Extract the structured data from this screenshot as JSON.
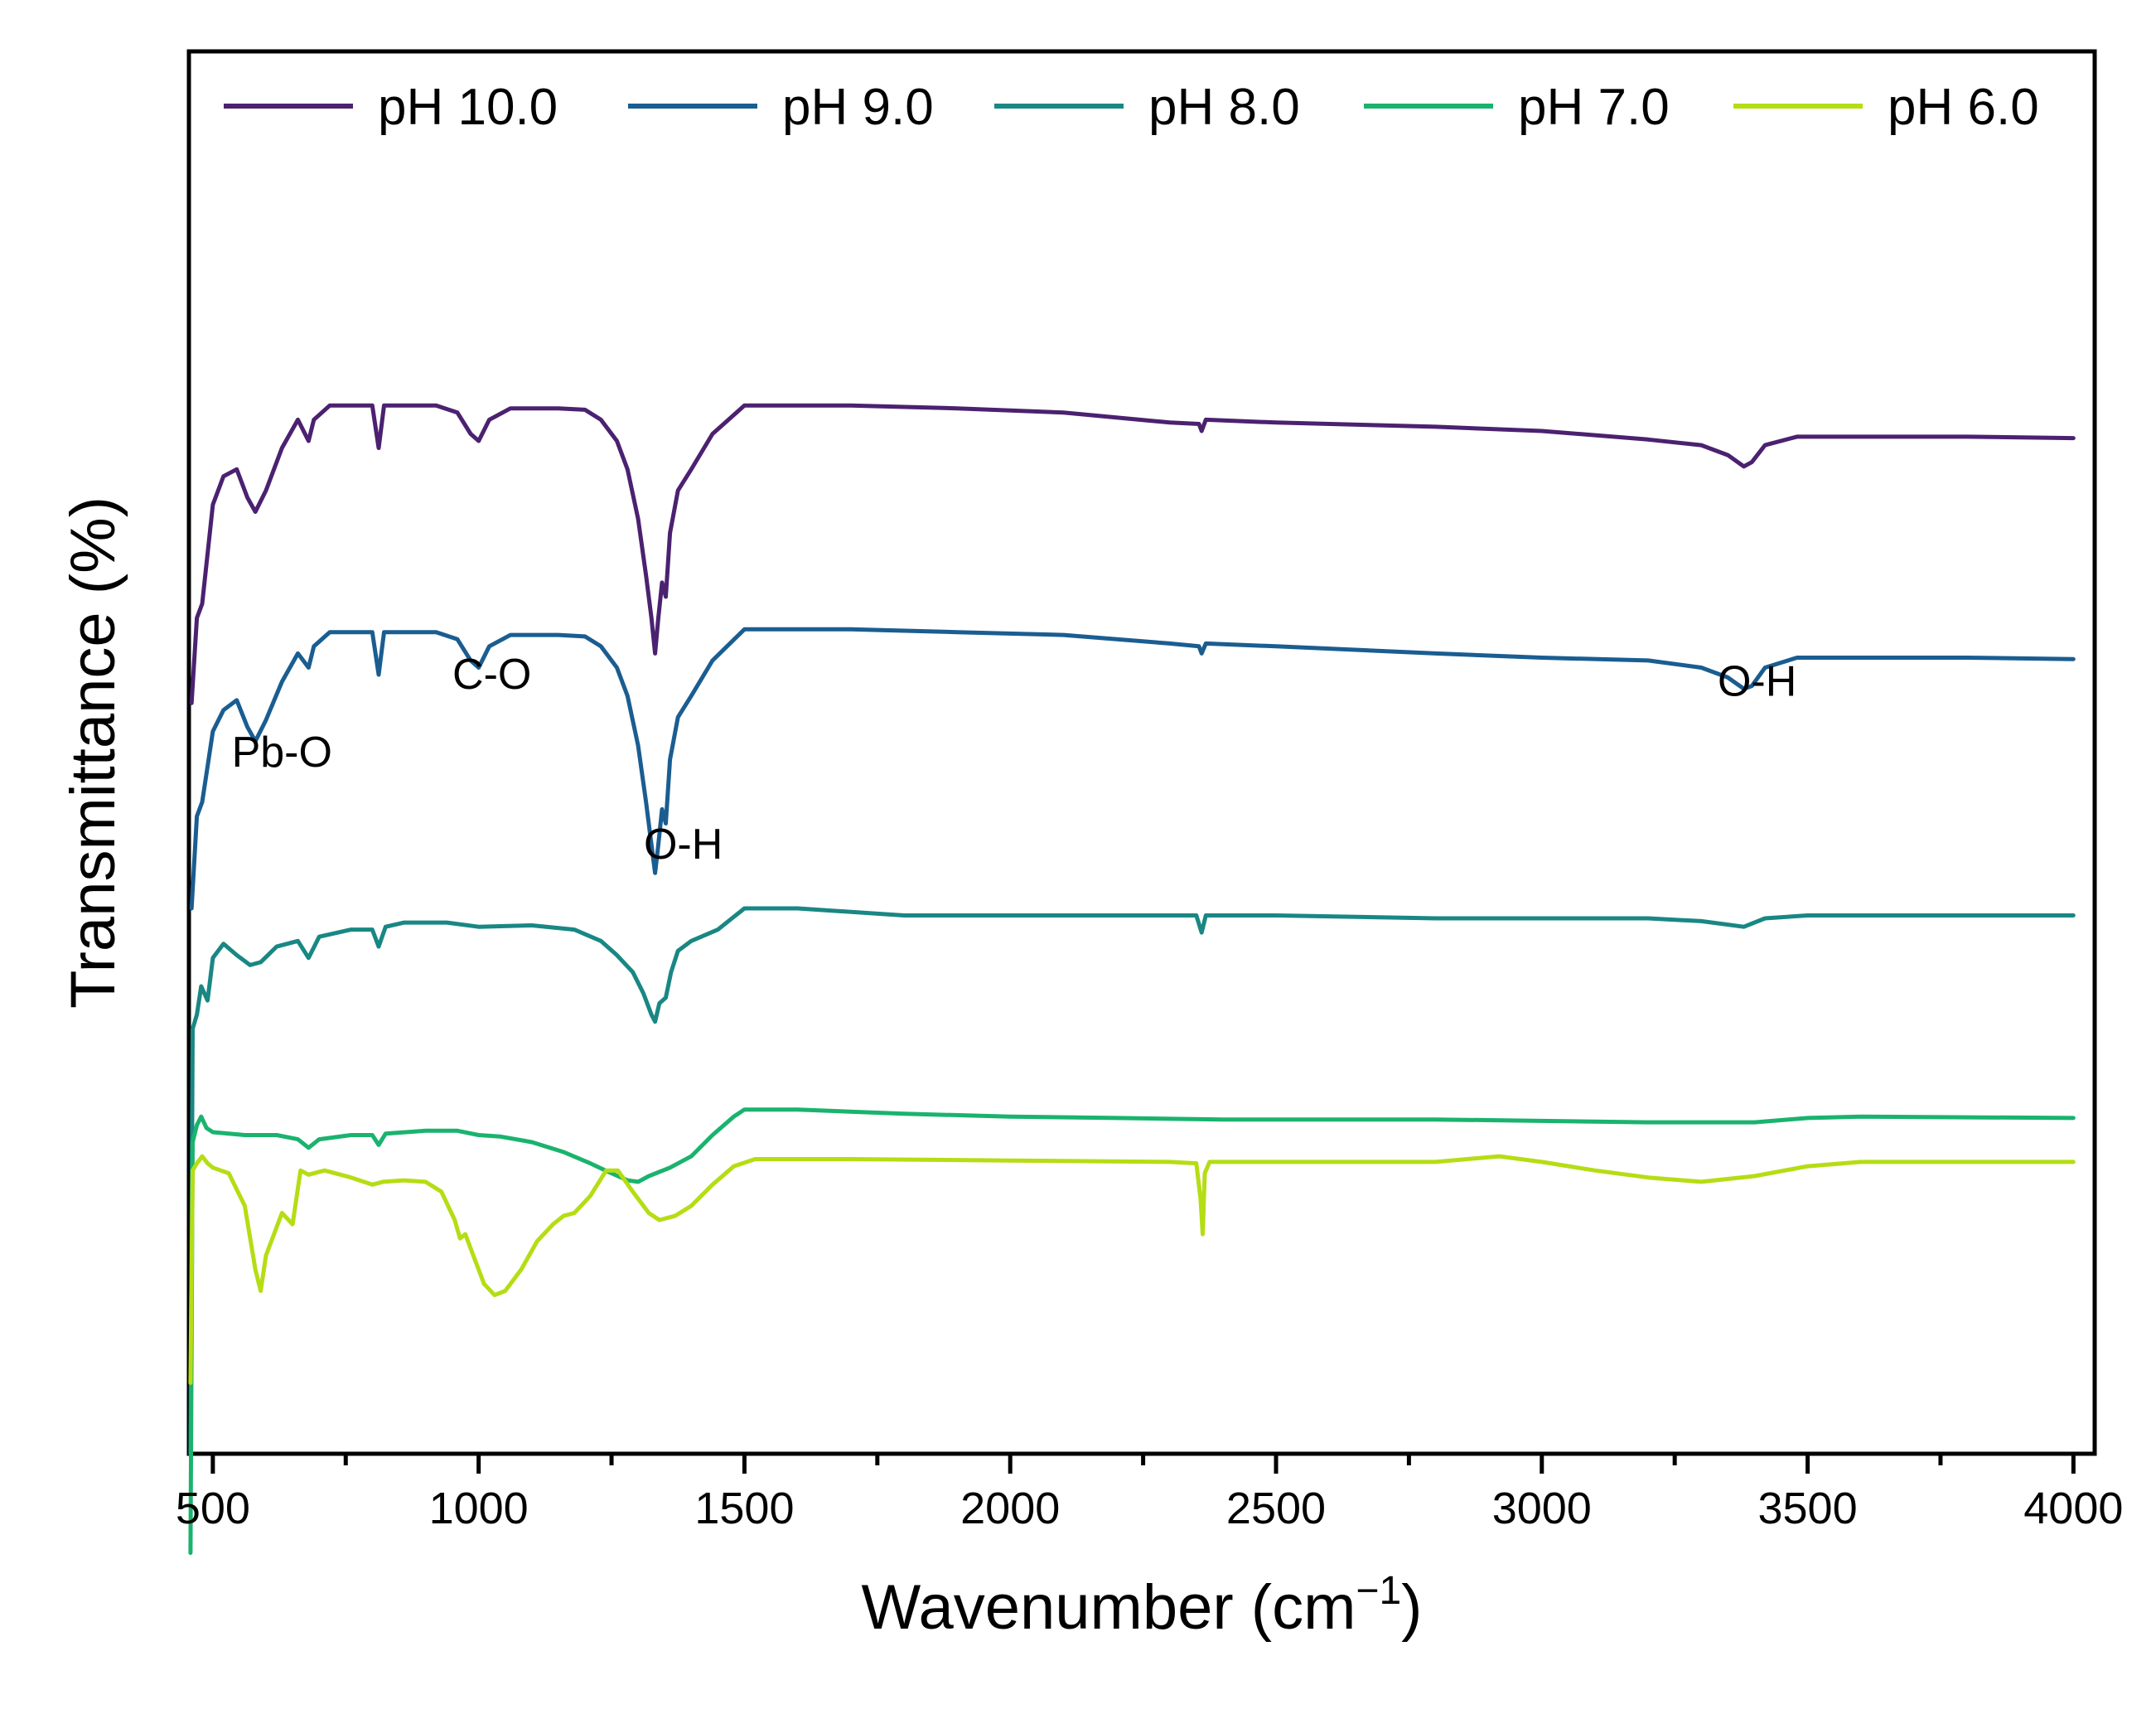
{
  "chart_data": {
    "type": "line",
    "title": "",
    "xlabel": "Wavenumber (cm",
    "xlabel_sup": "−1",
    "xlabel_end": ")",
    "ylabel": "Transmittance (%)",
    "xlim": [
      455,
      4040
    ],
    "ylim": [
      -8.4,
      1.5
    ],
    "xticks": [
      500,
      1000,
      1500,
      2000,
      2500,
      3000,
      3500,
      4000
    ],
    "xtick_labels": [
      "500",
      "1000",
      "1500",
      "2000",
      "2500",
      "3000",
      "3500",
      "4000"
    ],
    "yticks_shown": false,
    "legend_position": "top",
    "series": [
      {
        "name": "pH 10.0",
        "color": "#4b2170",
        "offset": -2.7,
        "points": [
          [
            460,
            -0.4
          ],
          [
            470,
            0.2
          ],
          [
            480,
            0.3
          ],
          [
            500,
            1.0
          ],
          [
            520,
            1.2
          ],
          [
            545,
            1.25
          ],
          [
            565,
            1.05
          ],
          [
            580,
            0.95
          ],
          [
            600,
            1.1
          ],
          [
            630,
            1.4
          ],
          [
            660,
            1.6
          ],
          [
            680,
            1.45
          ],
          [
            690,
            1.6
          ],
          [
            720,
            1.7
          ],
          [
            760,
            1.7
          ],
          [
            800,
            1.7
          ],
          [
            812,
            1.4
          ],
          [
            822,
            1.7
          ],
          [
            860,
            1.7
          ],
          [
            920,
            1.7
          ],
          [
            960,
            1.65
          ],
          [
            985,
            1.5
          ],
          [
            1000,
            1.45
          ],
          [
            1020,
            1.6
          ],
          [
            1060,
            1.68
          ],
          [
            1100,
            1.68
          ],
          [
            1150,
            1.68
          ],
          [
            1200,
            1.67
          ],
          [
            1230,
            1.6
          ],
          [
            1260,
            1.45
          ],
          [
            1280,
            1.25
          ],
          [
            1300,
            0.9
          ],
          [
            1315,
            0.5
          ],
          [
            1325,
            0.2
          ],
          [
            1332,
            -0.05
          ],
          [
            1338,
            0.2
          ],
          [
            1345,
            0.45
          ],
          [
            1352,
            0.35
          ],
          [
            1360,
            0.8
          ],
          [
            1375,
            1.1
          ],
          [
            1400,
            1.25
          ],
          [
            1440,
            1.5
          ],
          [
            1500,
            1.7
          ],
          [
            1600,
            1.7
          ],
          [
            1700,
            1.7
          ],
          [
            1900,
            1.68
          ],
          [
            2100,
            1.65
          ],
          [
            2300,
            1.58
          ],
          [
            2355,
            1.57
          ],
          [
            2360,
            1.52
          ],
          [
            2368,
            1.6
          ],
          [
            2500,
            1.58
          ],
          [
            2800,
            1.55
          ],
          [
            3000,
            1.52
          ],
          [
            3200,
            1.46
          ],
          [
            3300,
            1.42
          ],
          [
            3350,
            1.35
          ],
          [
            3380,
            1.27
          ],
          [
            3395,
            1.3
          ],
          [
            3420,
            1.42
          ],
          [
            3480,
            1.48
          ],
          [
            3600,
            1.48
          ],
          [
            3800,
            1.48
          ],
          [
            4000,
            1.47
          ]
        ]
      },
      {
        "name": "pH 9.0",
        "color": "#1a5d91",
        "offset": -4.3,
        "points": [
          [
            460,
            -0.25
          ],
          [
            470,
            0.4
          ],
          [
            480,
            0.5
          ],
          [
            500,
            1.0
          ],
          [
            520,
            1.15
          ],
          [
            545,
            1.22
          ],
          [
            565,
            1.03
          ],
          [
            580,
            0.93
          ],
          [
            600,
            1.08
          ],
          [
            630,
            1.35
          ],
          [
            660,
            1.55
          ],
          [
            680,
            1.45
          ],
          [
            690,
            1.6
          ],
          [
            720,
            1.7
          ],
          [
            760,
            1.7
          ],
          [
            800,
            1.7
          ],
          [
            812,
            1.4
          ],
          [
            822,
            1.7
          ],
          [
            860,
            1.7
          ],
          [
            920,
            1.7
          ],
          [
            960,
            1.65
          ],
          [
            985,
            1.5
          ],
          [
            1000,
            1.45
          ],
          [
            1020,
            1.6
          ],
          [
            1060,
            1.68
          ],
          [
            1100,
            1.68
          ],
          [
            1150,
            1.68
          ],
          [
            1200,
            1.67
          ],
          [
            1230,
            1.6
          ],
          [
            1260,
            1.45
          ],
          [
            1280,
            1.25
          ],
          [
            1300,
            0.9
          ],
          [
            1315,
            0.5
          ],
          [
            1325,
            0.2
          ],
          [
            1332,
            0.0
          ],
          [
            1338,
            0.2
          ],
          [
            1345,
            0.45
          ],
          [
            1352,
            0.35
          ],
          [
            1360,
            0.8
          ],
          [
            1375,
            1.1
          ],
          [
            1400,
            1.25
          ],
          [
            1440,
            1.5
          ],
          [
            1500,
            1.72
          ],
          [
            1600,
            1.72
          ],
          [
            1700,
            1.72
          ],
          [
            1900,
            1.7
          ],
          [
            2100,
            1.68
          ],
          [
            2300,
            1.62
          ],
          [
            2355,
            1.6
          ],
          [
            2360,
            1.55
          ],
          [
            2368,
            1.62
          ],
          [
            2500,
            1.6
          ],
          [
            2800,
            1.55
          ],
          [
            3000,
            1.52
          ],
          [
            3200,
            1.5
          ],
          [
            3300,
            1.45
          ],
          [
            3350,
            1.38
          ],
          [
            3380,
            1.3
          ],
          [
            3395,
            1.32
          ],
          [
            3420,
            1.45
          ],
          [
            3480,
            1.52
          ],
          [
            3600,
            1.52
          ],
          [
            3800,
            1.52
          ],
          [
            4000,
            1.51
          ]
        ]
      },
      {
        "name": "pH 8.0",
        "color": "#198784",
        "offset": -5.6,
        "points": [
          [
            458,
            -2.8
          ],
          [
            462,
            0.2
          ],
          [
            470,
            0.3
          ],
          [
            478,
            0.5
          ],
          [
            490,
            0.4
          ],
          [
            500,
            0.7
          ],
          [
            520,
            0.8
          ],
          [
            545,
            0.72
          ],
          [
            570,
            0.65
          ],
          [
            590,
            0.67
          ],
          [
            620,
            0.78
          ],
          [
            660,
            0.82
          ],
          [
            680,
            0.7
          ],
          [
            700,
            0.85
          ],
          [
            760,
            0.9
          ],
          [
            800,
            0.9
          ],
          [
            812,
            0.78
          ],
          [
            825,
            0.92
          ],
          [
            860,
            0.95
          ],
          [
            940,
            0.95
          ],
          [
            1000,
            0.92
          ],
          [
            1100,
            0.93
          ],
          [
            1180,
            0.9
          ],
          [
            1230,
            0.82
          ],
          [
            1260,
            0.72
          ],
          [
            1290,
            0.6
          ],
          [
            1310,
            0.45
          ],
          [
            1325,
            0.3
          ],
          [
            1332,
            0.25
          ],
          [
            1340,
            0.38
          ],
          [
            1352,
            0.42
          ],
          [
            1362,
            0.6
          ],
          [
            1375,
            0.75
          ],
          [
            1400,
            0.82
          ],
          [
            1450,
            0.9
          ],
          [
            1500,
            1.05
          ],
          [
            1600,
            1.05
          ],
          [
            1800,
            1.0
          ],
          [
            2000,
            1.0
          ],
          [
            2300,
            1.0
          ],
          [
            2350,
            1.0
          ],
          [
            2360,
            0.88
          ],
          [
            2368,
            1.0
          ],
          [
            2500,
            1.0
          ],
          [
            2800,
            0.98
          ],
          [
            3000,
            0.98
          ],
          [
            3200,
            0.98
          ],
          [
            3300,
            0.96
          ],
          [
            3380,
            0.92
          ],
          [
            3420,
            0.98
          ],
          [
            3500,
            1.0
          ],
          [
            4000,
            1.0
          ]
        ]
      },
      {
        "name": "pH 7.0",
        "color": "#1ab36e",
        "offset": -6.6,
        "points": [
          [
            458,
            -2.5
          ],
          [
            462,
            0.4
          ],
          [
            470,
            0.52
          ],
          [
            478,
            0.58
          ],
          [
            488,
            0.5
          ],
          [
            500,
            0.47
          ],
          [
            560,
            0.45
          ],
          [
            620,
            0.45
          ],
          [
            660,
            0.42
          ],
          [
            680,
            0.36
          ],
          [
            700,
            0.42
          ],
          [
            760,
            0.45
          ],
          [
            800,
            0.45
          ],
          [
            812,
            0.38
          ],
          [
            825,
            0.46
          ],
          [
            900,
            0.48
          ],
          [
            960,
            0.48
          ],
          [
            1000,
            0.45
          ],
          [
            1040,
            0.44
          ],
          [
            1100,
            0.4
          ],
          [
            1160,
            0.33
          ],
          [
            1210,
            0.25
          ],
          [
            1250,
            0.18
          ],
          [
            1280,
            0.13
          ],
          [
            1300,
            0.12
          ],
          [
            1320,
            0.16
          ],
          [
            1360,
            0.22
          ],
          [
            1400,
            0.3
          ],
          [
            1440,
            0.45
          ],
          [
            1480,
            0.58
          ],
          [
            1500,
            0.63
          ],
          [
            1600,
            0.63
          ],
          [
            1800,
            0.6
          ],
          [
            2000,
            0.58
          ],
          [
            2200,
            0.57
          ],
          [
            2400,
            0.56
          ],
          [
            2600,
            0.56
          ],
          [
            2800,
            0.56
          ],
          [
            3000,
            0.55
          ],
          [
            3200,
            0.54
          ],
          [
            3400,
            0.54
          ],
          [
            3500,
            0.57
          ],
          [
            3600,
            0.58
          ],
          [
            4000,
            0.57
          ]
        ]
      },
      {
        "name": "pH 6.0",
        "color": "#b5dd14",
        "offset": -7.3,
        "points": [
          [
            458,
            -0.6
          ],
          [
            462,
            0.9
          ],
          [
            470,
            0.95
          ],
          [
            480,
            1.0
          ],
          [
            490,
            0.95
          ],
          [
            500,
            0.92
          ],
          [
            530,
            0.88
          ],
          [
            560,
            0.65
          ],
          [
            580,
            0.2
          ],
          [
            590,
            0.05
          ],
          [
            600,
            0.3
          ],
          [
            630,
            0.6
          ],
          [
            650,
            0.52
          ],
          [
            665,
            0.9
          ],
          [
            680,
            0.87
          ],
          [
            710,
            0.9
          ],
          [
            760,
            0.85
          ],
          [
            800,
            0.8
          ],
          [
            820,
            0.82
          ],
          [
            860,
            0.83
          ],
          [
            900,
            0.82
          ],
          [
            930,
            0.75
          ],
          [
            955,
            0.55
          ],
          [
            965,
            0.42
          ],
          [
            975,
            0.45
          ],
          [
            990,
            0.3
          ],
          [
            1010,
            0.1
          ],
          [
            1030,
            0.02
          ],
          [
            1050,
            0.05
          ],
          [
            1080,
            0.2
          ],
          [
            1110,
            0.4
          ],
          [
            1140,
            0.52
          ],
          [
            1160,
            0.58
          ],
          [
            1180,
            0.6
          ],
          [
            1210,
            0.72
          ],
          [
            1240,
            0.9
          ],
          [
            1262,
            0.9
          ],
          [
            1290,
            0.75
          ],
          [
            1320,
            0.6
          ],
          [
            1340,
            0.55
          ],
          [
            1370,
            0.58
          ],
          [
            1400,
            0.65
          ],
          [
            1440,
            0.8
          ],
          [
            1480,
            0.93
          ],
          [
            1520,
            0.98
          ],
          [
            1700,
            0.98
          ],
          [
            2000,
            0.97
          ],
          [
            2300,
            0.96
          ],
          [
            2350,
            0.95
          ],
          [
            2358,
            0.7
          ],
          [
            2362,
            0.45
          ],
          [
            2366,
            0.88
          ],
          [
            2375,
            0.96
          ],
          [
            2500,
            0.96
          ],
          [
            2800,
            0.96
          ],
          [
            2920,
            1.0
          ],
          [
            3000,
            0.96
          ],
          [
            3100,
            0.9
          ],
          [
            3200,
            0.85
          ],
          [
            3300,
            0.82
          ],
          [
            3400,
            0.86
          ],
          [
            3500,
            0.93
          ],
          [
            3600,
            0.96
          ],
          [
            4000,
            0.96
          ]
        ]
      }
    ],
    "annotations": [
      {
        "text": "Pb-O",
        "x": 630,
        "y": -3.55
      },
      {
        "text": "C-O",
        "x": 1025,
        "y": -3.0
      },
      {
        "text": "O-H",
        "x": 1385,
        "y": -4.2
      },
      {
        "text": "O-H",
        "x": 3405,
        "y": -3.05
      }
    ]
  }
}
